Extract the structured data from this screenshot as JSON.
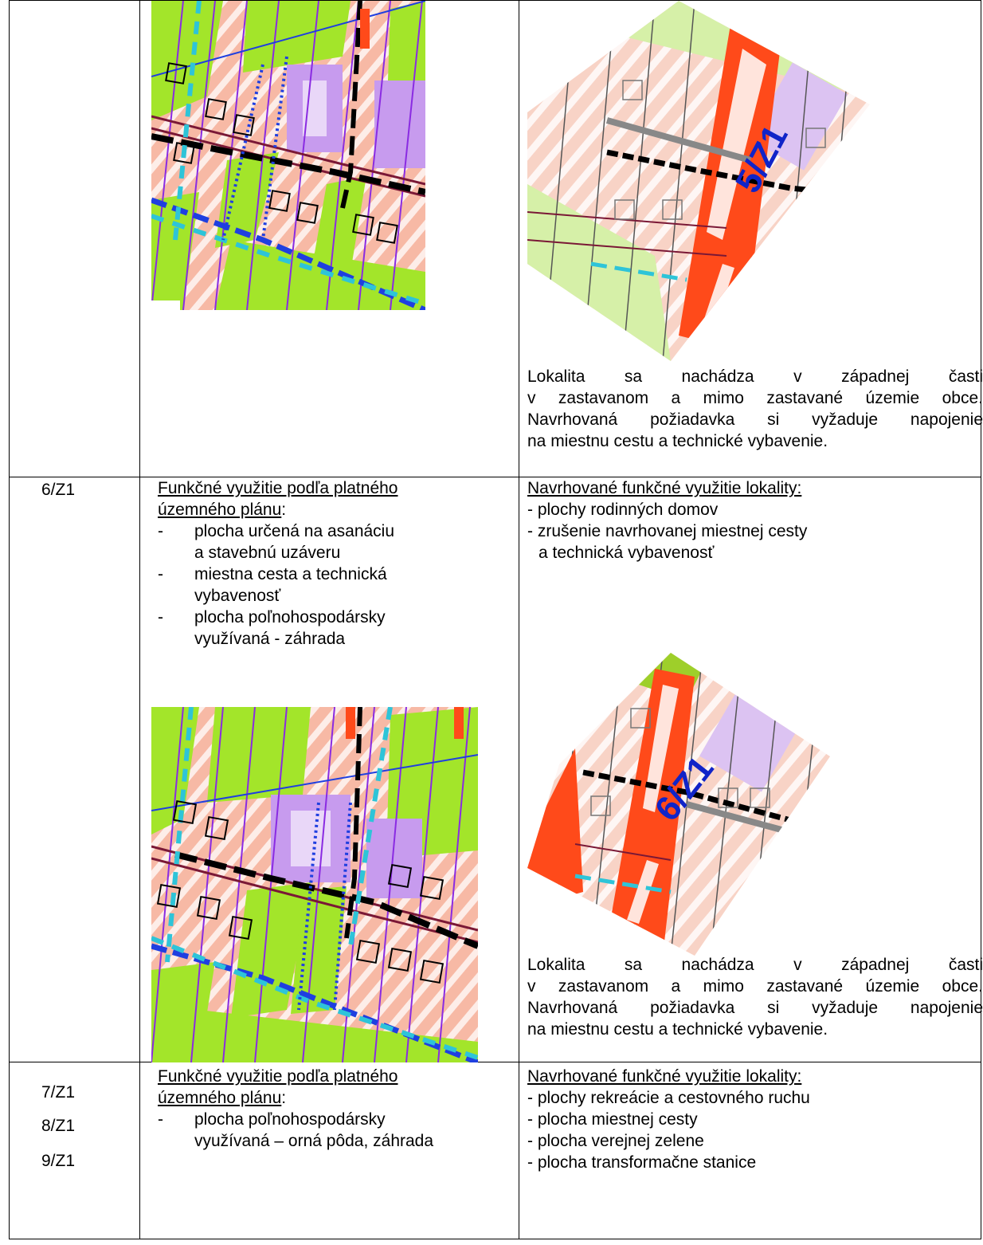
{
  "row1": {
    "description": [
      "Lokalita sa nachádza v západnej časti",
      "v zastavanom a mimo zastavané územie obce.",
      "Navrhovaná požiadavka si vyžaduje napojenie",
      "na miestnu cestu a technické vybavenie."
    ],
    "map_label": "5/Z1"
  },
  "row2": {
    "locality": "6/Z1",
    "current_heading": [
      "Funkčné využitie podľa platného",
      "územného plánu"
    ],
    "current_heading_colon": ":",
    "current_items": [
      [
        "plocha určená na asanáciu",
        "a stavebnú uzáveru"
      ],
      [
        "miestna cesta a technická",
        "vybavenosť"
      ],
      [
        "plocha poľnohospodársky",
        "využívaná - záhrada"
      ]
    ],
    "proposed_heading": "Navrhované funkčné využitie lokality:",
    "proposed_items": [
      [
        "- plochy rodinných domov"
      ],
      [
        "- zrušenie navrhovanej miestnej cesty",
        "a technická vybavenosť"
      ]
    ],
    "description": [
      "Lokalita sa nachádza v západnej časti",
      "v zastavanom a mimo zastavané územie obce.",
      "Navrhovaná požiadavka si vyžaduje napojenie",
      "na miestnu cestu a technické vybavenie."
    ],
    "map_label": "6/Z1"
  },
  "row3": {
    "localities": [
      "7/Z1",
      "8/Z1",
      "9/Z1"
    ],
    "current_heading": [
      "Funkčné využitie podľa platného",
      "územného plánu"
    ],
    "current_heading_colon": ":",
    "current_items": [
      [
        "plocha poľnohospodársky",
        "využívaná – orná pôda, záhrada"
      ]
    ],
    "proposed_heading": "Navrhované funkčné využitie lokality:",
    "proposed_items": [
      "- plochy rekreácie a cestovného ruchu",
      "- plocha miestnej cesty",
      "- plocha verejnej zelene",
      "- plocha transformačne stanice"
    ]
  },
  "colors": {
    "salmon": "#f7b9a5",
    "green": "#a3e52a",
    "lavender": "#c79bee",
    "purple": "#8a2be2",
    "red_orange": "#ff4a1a",
    "blue": "#1f3fe0",
    "cyan": "#2ec4d8",
    "maroon": "#7a1836",
    "label_blue": "#1024c8"
  }
}
